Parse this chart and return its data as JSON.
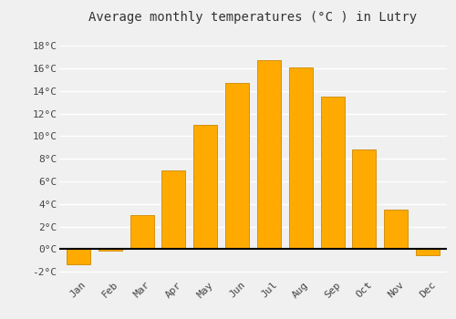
{
  "title": "Average monthly temperatures (°C ) in Lutry",
  "months": [
    "Jan",
    "Feb",
    "Mar",
    "Apr",
    "May",
    "Jun",
    "Jul",
    "Aug",
    "Sep",
    "Oct",
    "Nov",
    "Dec"
  ],
  "values": [
    -1.3,
    -0.1,
    3.0,
    7.0,
    11.0,
    14.7,
    16.7,
    16.1,
    13.5,
    8.8,
    3.5,
    -0.5
  ],
  "bar_color": "#FFAA00",
  "bar_edge_color": "#CC8800",
  "background_color": "#F0F0F0",
  "grid_color": "#FFFFFF",
  "ylim": [
    -2.5,
    19.5
  ],
  "yticks": [
    -2,
    0,
    2,
    4,
    6,
    8,
    10,
    12,
    14,
    16,
    18
  ],
  "ytick_labels": [
    "-2°C",
    "0°C",
    "2°C",
    "4°C",
    "6°C",
    "8°C",
    "10°C",
    "12°C",
    "14°C",
    "16°C",
    "18°C"
  ],
  "title_fontsize": 10,
  "tick_fontsize": 8,
  "bar_width": 0.75
}
